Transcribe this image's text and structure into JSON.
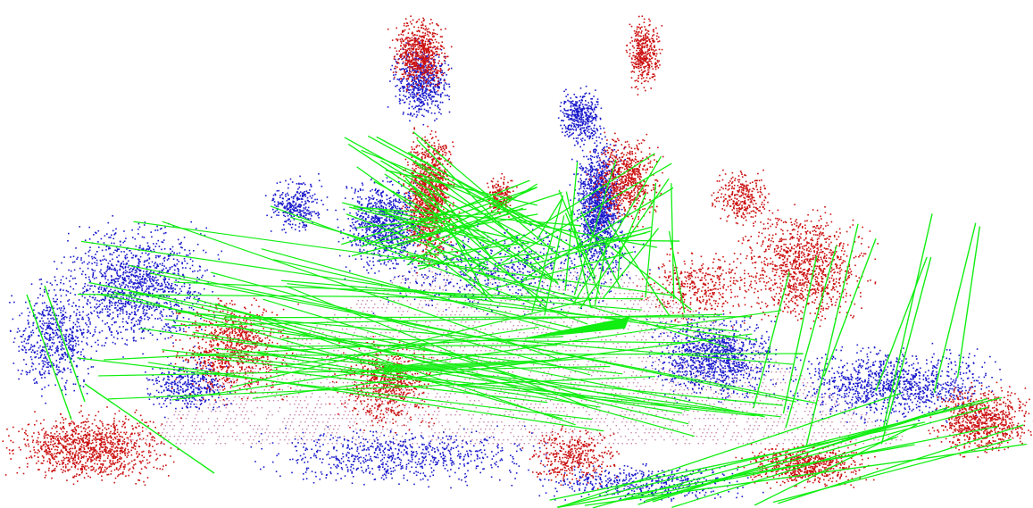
{
  "scene": {
    "background": "#ffffff",
    "source_cloud_color": "#cc1111",
    "target_cloud_color": "#1a1acc",
    "correspondence_color": "#11ee11",
    "ground_tint": "#b45a8c",
    "description_tag": "point-cloud-registration-view"
  }
}
